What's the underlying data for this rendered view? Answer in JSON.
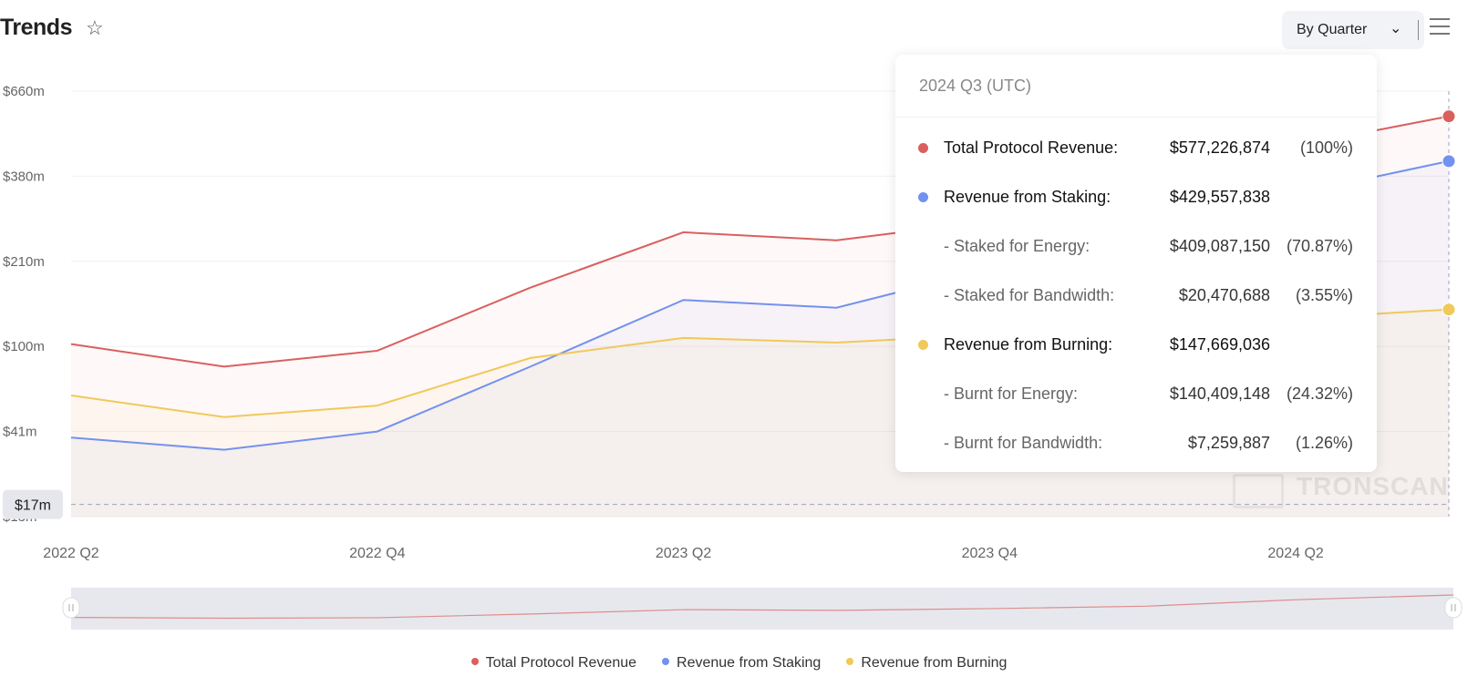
{
  "header": {
    "title": "Trends",
    "star_icon": "star-outline-icon",
    "period_select": "By Quarter",
    "menu_icon": "hamburger-menu-icon"
  },
  "colors": {
    "total": "#d9605e",
    "staking": "#7391ee",
    "burning": "#f0c95a"
  },
  "tooltip": {
    "title": "2024 Q3 (UTC)",
    "rows": [
      {
        "label": "Total Protocol Revenue:",
        "value": "$577,226,874",
        "pct": "(100%)",
        "series": "total"
      },
      {
        "label": "Revenue from Staking:",
        "value": "$429,557,838",
        "pct": "",
        "series": "staking"
      },
      {
        "label": "- Staked for Energy:",
        "value": "$409,087,150",
        "pct": "(70.87%)",
        "series": ""
      },
      {
        "label": "- Staked for Bandwidth:",
        "value": "$20,470,688",
        "pct": "(3.55%)",
        "series": ""
      },
      {
        "label": "Revenue from Burning:",
        "value": "$147,669,036",
        "pct": "",
        "series": "burning"
      },
      {
        "label": "- Burnt for Energy:",
        "value": "$140,409,148",
        "pct": "(24.32%)",
        "series": ""
      },
      {
        "label": "- Burnt for Bandwidth:",
        "value": "$7,259,887",
        "pct": "(1.26%)",
        "series": ""
      }
    ]
  },
  "watermark": "TRONSCAN",
  "chart_data": {
    "type": "line",
    "x": [
      "2022 Q2",
      "2022 Q3",
      "2022 Q4",
      "2023 Q1",
      "2023 Q2",
      "2023 Q3",
      "2023 Q4",
      "2024 Q1",
      "2024 Q2",
      "2024 Q3"
    ],
    "x_tick_labels": [
      "2022 Q2",
      "2022 Q4",
      "2023 Q2",
      "2023 Q4",
      "2024 Q2"
    ],
    "y_ticks": [
      13,
      41,
      100,
      210,
      380,
      660
    ],
    "y_tick_labels": [
      "$13m",
      "$41m",
      "$100m",
      "$210m",
      "$380m",
      "$660m"
    ],
    "y_unit": "USD millions",
    "y_pointer_label": "$17m",
    "y_pointer_value": 17,
    "hover_index": 9,
    "grid": true,
    "legend_position": "bottom",
    "series": [
      {
        "name": "Total Protocol Revenue",
        "key": "total",
        "values": [
          103,
          86,
          97,
          176,
          268,
          252,
          290,
          340,
          480,
          577.2
        ]
      },
      {
        "name": "Revenue from Staking",
        "key": "staking",
        "values": [
          39,
          35,
          41,
          86,
          160,
          150,
          200,
          250,
          345,
          429.6
        ]
      },
      {
        "name": "Revenue from Burning",
        "key": "burning",
        "values": [
          66,
          51,
          59,
          92,
          111,
          105,
          115,
          122,
          136,
          147.7
        ]
      }
    ]
  }
}
